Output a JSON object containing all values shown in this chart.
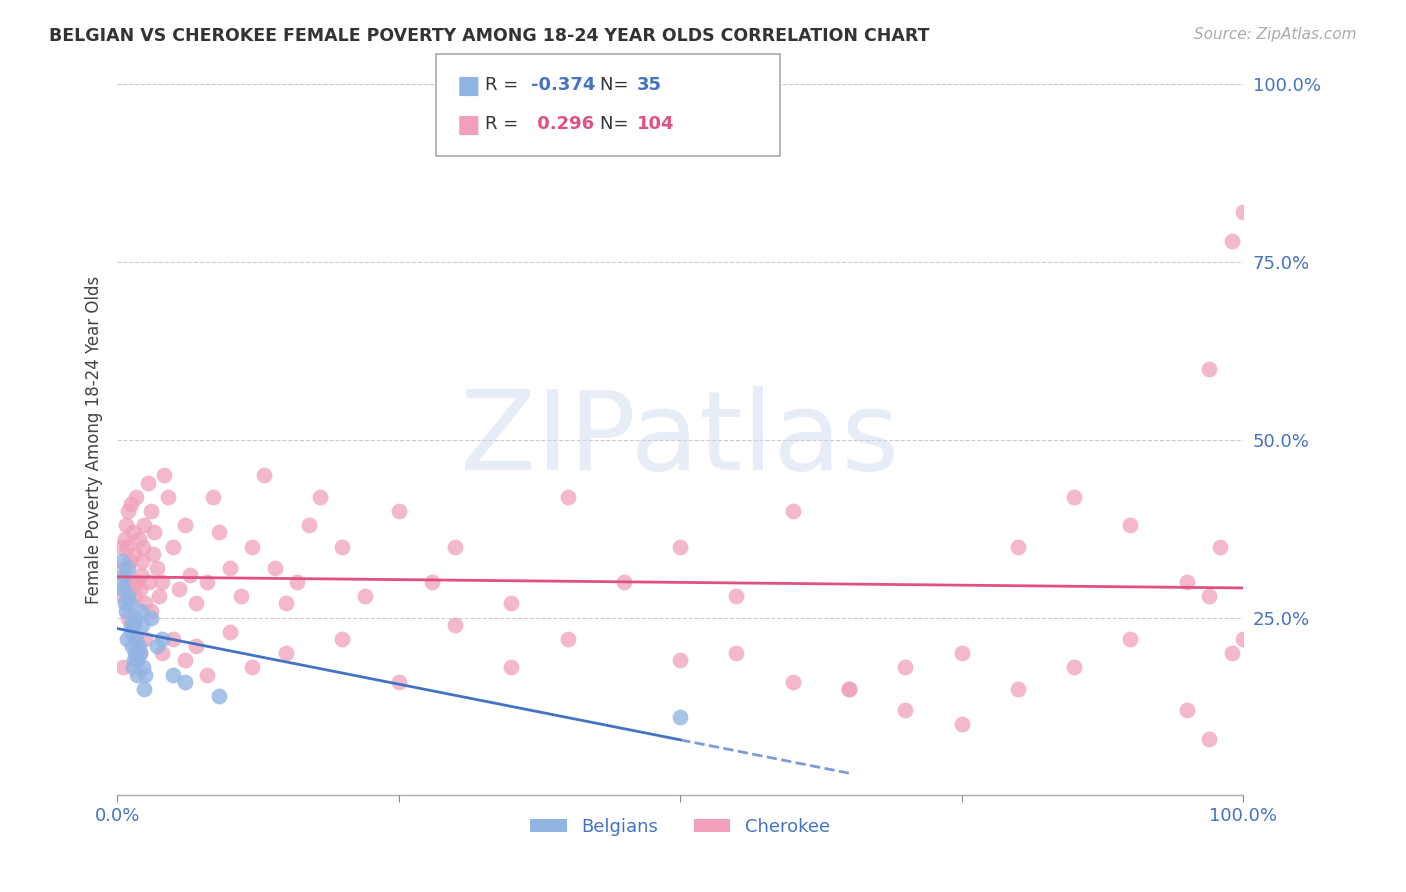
{
  "title": "BELGIAN VS CHEROKEE FEMALE POVERTY AMONG 18-24 YEAR OLDS CORRELATION CHART",
  "source": "Source: ZipAtlas.com",
  "ylabel": "Female Poverty Among 18-24 Year Olds",
  "xlim": [
    0.0,
    1.0
  ],
  "ylim": [
    0.0,
    1.0
  ],
  "ytick_vals": [
    0.0,
    0.25,
    0.5,
    0.75,
    1.0
  ],
  "ytick_labels": [
    "",
    "25.0%",
    "50.0%",
    "75.0%",
    "100.0%"
  ],
  "xtick_vals": [
    0.0,
    0.25,
    0.5,
    0.75,
    1.0
  ],
  "xtick_labels": [
    "0.0%",
    "",
    "",
    "",
    "100.0%"
  ],
  "legend_blue_R": "-0.374",
  "legend_blue_N": "35",
  "legend_pink_R": "0.296",
  "legend_pink_N": "104",
  "blue_color": "#92b4e3",
  "pink_color": "#f0a0b8",
  "blue_line_color": "#4472c4",
  "pink_line_color": "#e05080",
  "axis_label_color": "#4472c4",
  "title_color": "#333333",
  "watermark": "ZIPatlas",
  "belgians_x": [
    0.003,
    0.004,
    0.005,
    0.006,
    0.007,
    0.008,
    0.009,
    0.01,
    0.01,
    0.011,
    0.012,
    0.012,
    0.013,
    0.014,
    0.015,
    0.015,
    0.016,
    0.016,
    0.017,
    0.018,
    0.018,
    0.019,
    0.02,
    0.021,
    0.022,
    0.023,
    0.024,
    0.025,
    0.03,
    0.035,
    0.04,
    0.05,
    0.06,
    0.09,
    0.5
  ],
  "belgians_y": [
    0.3,
    0.33,
    0.29,
    0.31,
    0.27,
    0.26,
    0.22,
    0.32,
    0.28,
    0.27,
    0.24,
    0.23,
    0.21,
    0.18,
    0.19,
    0.24,
    0.25,
    0.2,
    0.22,
    0.19,
    0.17,
    0.21,
    0.2,
    0.26,
    0.24,
    0.18,
    0.15,
    0.17,
    0.25,
    0.21,
    0.22,
    0.17,
    0.16,
    0.14,
    0.11
  ],
  "cherokee_x": [
    0.003,
    0.005,
    0.006,
    0.007,
    0.008,
    0.009,
    0.01,
    0.011,
    0.012,
    0.013,
    0.014,
    0.015,
    0.016,
    0.017,
    0.018,
    0.019,
    0.02,
    0.021,
    0.022,
    0.023,
    0.024,
    0.025,
    0.027,
    0.028,
    0.03,
    0.032,
    0.033,
    0.035,
    0.037,
    0.04,
    0.042,
    0.045,
    0.05,
    0.055,
    0.06,
    0.065,
    0.07,
    0.08,
    0.085,
    0.09,
    0.1,
    0.11,
    0.12,
    0.13,
    0.14,
    0.15,
    0.16,
    0.17,
    0.18,
    0.2,
    0.22,
    0.25,
    0.28,
    0.3,
    0.35,
    0.4,
    0.45,
    0.5,
    0.55,
    0.6,
    0.65,
    0.7,
    0.75,
    0.8,
    0.85,
    0.9,
    0.95,
    0.97,
    0.98,
    0.99,
    1.0,
    0.005,
    0.01,
    0.015,
    0.02,
    0.025,
    0.03,
    0.04,
    0.05,
    0.06,
    0.07,
    0.08,
    0.1,
    0.12,
    0.15,
    0.2,
    0.25,
    0.3,
    0.35,
    0.4,
    0.5,
    0.55,
    0.6,
    0.65,
    0.7,
    0.75,
    0.8,
    0.85,
    0.9,
    0.95,
    0.97,
    0.99,
    1.0,
    0.97
  ],
  "cherokee_y": [
    0.35,
    0.28,
    0.32,
    0.36,
    0.38,
    0.35,
    0.4,
    0.33,
    0.41,
    0.3,
    0.37,
    0.34,
    0.28,
    0.42,
    0.3,
    0.36,
    0.29,
    0.31,
    0.33,
    0.35,
    0.38,
    0.27,
    0.44,
    0.3,
    0.4,
    0.34,
    0.37,
    0.32,
    0.28,
    0.3,
    0.45,
    0.42,
    0.35,
    0.29,
    0.38,
    0.31,
    0.27,
    0.3,
    0.42,
    0.37,
    0.32,
    0.28,
    0.35,
    0.45,
    0.32,
    0.27,
    0.3,
    0.38,
    0.42,
    0.35,
    0.28,
    0.4,
    0.3,
    0.35,
    0.27,
    0.42,
    0.3,
    0.35,
    0.28,
    0.4,
    0.15,
    0.12,
    0.1,
    0.35,
    0.42,
    0.38,
    0.3,
    0.28,
    0.35,
    0.2,
    0.22,
    0.18,
    0.25,
    0.3,
    0.2,
    0.22,
    0.26,
    0.2,
    0.22,
    0.19,
    0.21,
    0.17,
    0.23,
    0.18,
    0.2,
    0.22,
    0.16,
    0.24,
    0.18,
    0.22,
    0.19,
    0.2,
    0.16,
    0.15,
    0.18,
    0.2,
    0.15,
    0.18,
    0.22,
    0.12,
    0.6,
    0.78,
    0.82,
    0.08
  ]
}
